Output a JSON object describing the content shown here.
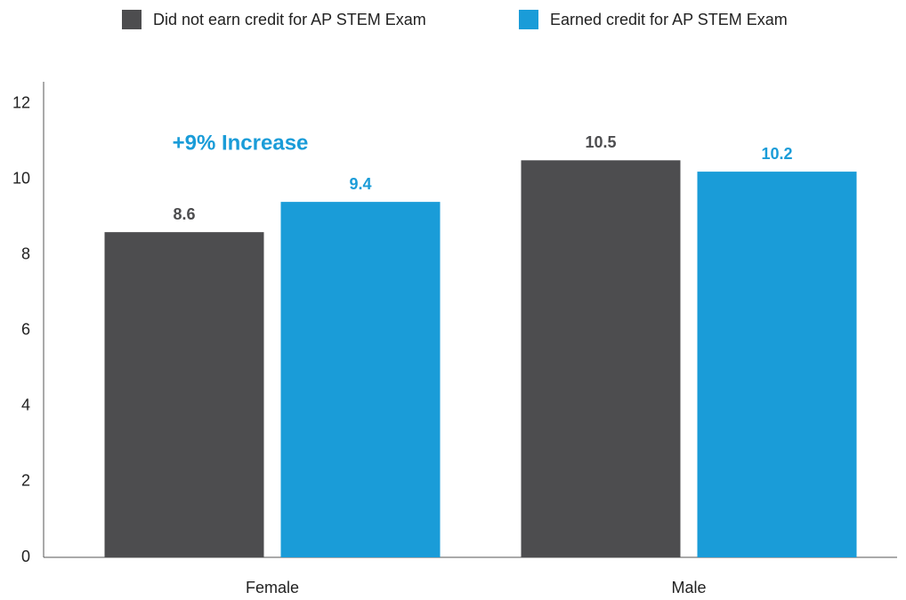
{
  "chart_data": {
    "type": "bar",
    "categories": [
      "Female",
      "Male"
    ],
    "series": [
      {
        "name": "Did not earn credit for AP STEM Exam",
        "color": "#4d4d4f",
        "values": [
          8.6,
          10.5
        ]
      },
      {
        "name": "Earned credit for AP STEM Exam",
        "color": "#1a9cd8",
        "values": [
          9.4,
          10.2
        ]
      }
    ],
    "annotation": "+9% Increase",
    "ylim": [
      0,
      12.6
    ],
    "yticks": [
      0,
      2,
      4,
      6,
      8,
      10,
      12
    ],
    "grid": false,
    "legend": "top"
  }
}
